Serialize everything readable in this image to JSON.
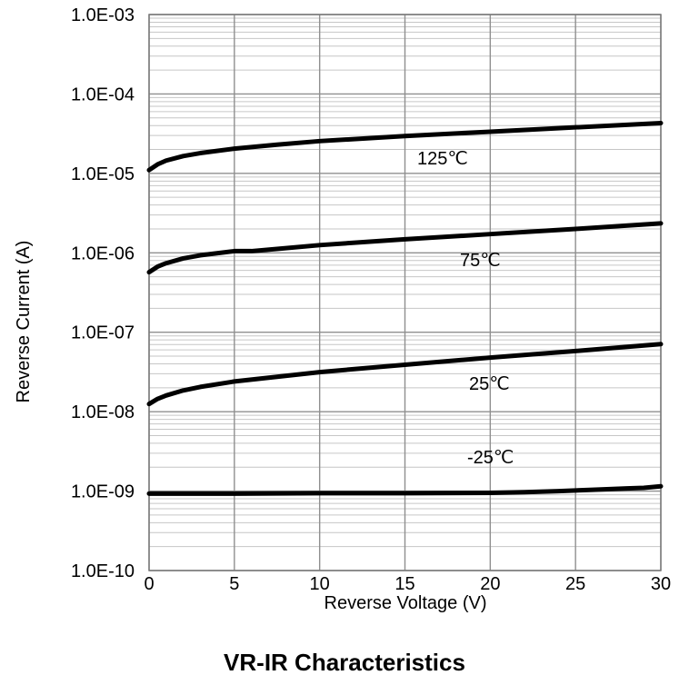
{
  "chart_data": {
    "type": "line",
    "title": "VR-IR Characteristics",
    "xlabel": "Reverse Voltage (V)",
    "ylabel": "Reverse Current (A)",
    "x_scale": "linear",
    "y_scale": "log",
    "xlim": [
      0,
      30
    ],
    "ylim": [
      1e-10,
      0.001
    ],
    "x_ticks": [
      0,
      5,
      10,
      15,
      20,
      25,
      30
    ],
    "y_ticks": [
      1e-10,
      1e-09,
      1e-08,
      1e-07,
      1e-06,
      1e-05,
      0.0001,
      0.001
    ],
    "x_tick_labels": [
      "0",
      "5",
      "10",
      "15",
      "20",
      "25",
      "30"
    ],
    "y_tick_labels": [
      "1.0E-10",
      "1.0E-09",
      "1.0E-08",
      "1.0E-07",
      "1.0E-06",
      "1.0E-05",
      "1.0E-04",
      "1.0E-03"
    ],
    "grid": true,
    "minor_grid": true,
    "series": [
      {
        "name": "125℃",
        "x": [
          0,
          0.5,
          1,
          2,
          3,
          5,
          7.5,
          10,
          15,
          20,
          25,
          30
        ],
        "y": [
          1.1e-05,
          1.3e-05,
          1.45e-05,
          1.65e-05,
          1.8e-05,
          2.05e-05,
          2.3e-05,
          2.55e-05,
          2.95e-05,
          3.35e-05,
          3.8e-05,
          4.3e-05
        ]
      },
      {
        "name": "75℃",
        "x": [
          0,
          0.5,
          1,
          2,
          3,
          5,
          6,
          7.5,
          10,
          15,
          20,
          25,
          30
        ],
        "y": [
          5.7e-07,
          6.7e-07,
          7.4e-07,
          8.5e-07,
          9.3e-07,
          1.05e-06,
          1.05e-06,
          1.12e-06,
          1.25e-06,
          1.48e-06,
          1.72e-06,
          2e-06,
          2.35e-06
        ]
      },
      {
        "name": "25℃",
        "x": [
          0,
          0.5,
          1,
          2,
          3,
          5,
          7.5,
          10,
          15,
          20,
          25,
          30
        ],
        "y": [
          1.25e-08,
          1.45e-08,
          1.6e-08,
          1.85e-08,
          2.05e-08,
          2.4e-08,
          2.75e-08,
          3.15e-08,
          3.9e-08,
          4.8e-08,
          5.8e-08,
          7.1e-08
        ]
      },
      {
        "name": "-25℃",
        "x": [
          0,
          5,
          10,
          15,
          20,
          22,
          24,
          26,
          28,
          29,
          30
        ],
        "y": [
          9.3e-10,
          9.3e-10,
          9.4e-10,
          9.4e-10,
          9.5e-10,
          9.7e-10,
          1e-09,
          1.04e-09,
          1.08e-09,
          1.1e-09,
          1.15e-09
        ]
      }
    ]
  }
}
